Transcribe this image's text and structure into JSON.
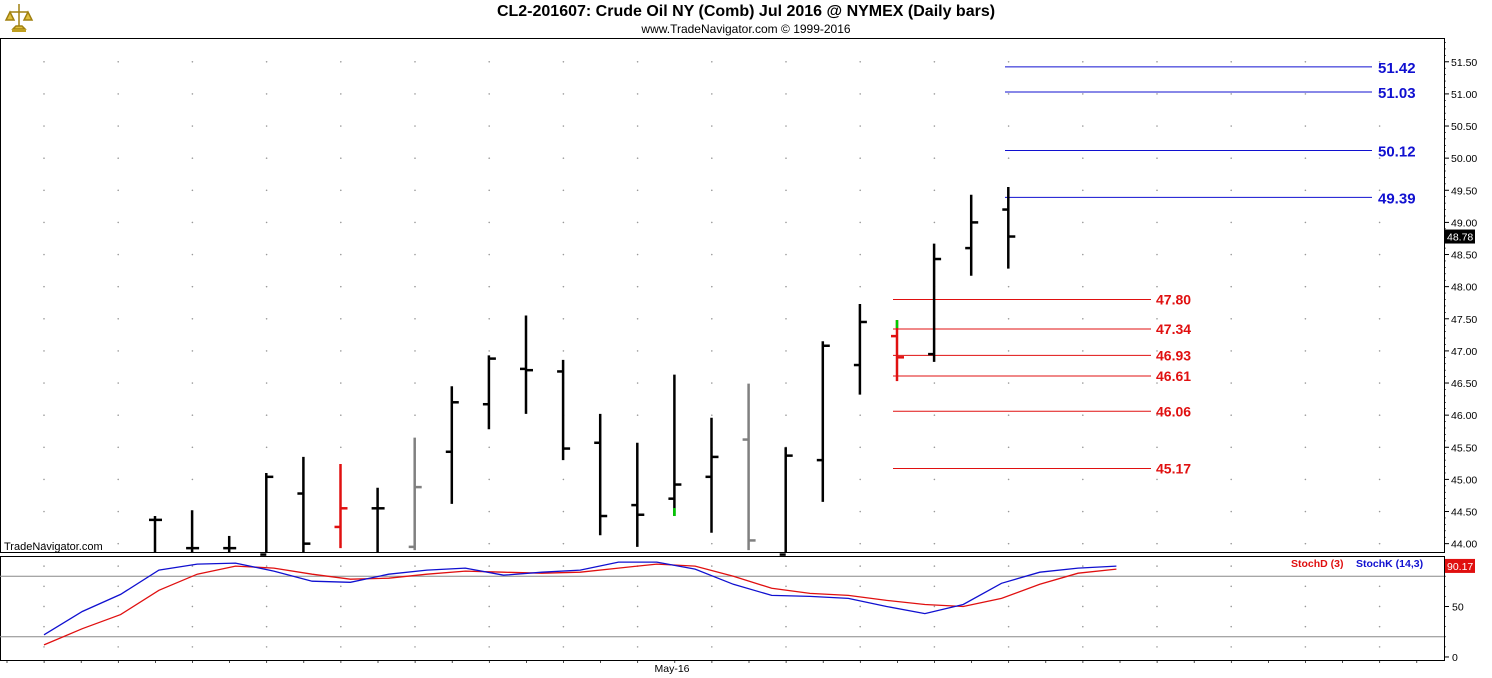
{
  "header": {
    "title": "CL2-201607:  Crude Oil NY (Comb) Jul 2016 @ NYMEX  (Daily bars)",
    "subtitle": "www.TradeNavigator.com © 1999-2016",
    "watermark": "TradeNavigator.com"
  },
  "chart_data": [
    {
      "type": "ohlc",
      "ylim": [
        43.87,
        51.87
      ],
      "yticks": [
        "44.00",
        "44.50",
        "45.00",
        "45.50",
        "46.00",
        "46.50",
        "47.00",
        "47.50",
        "48.00",
        "48.50",
        "49.00",
        "49.50",
        "50.00",
        "50.50",
        "51.00",
        "51.50"
      ],
      "last_price": "48.78",
      "xtick_label": "May-16",
      "grid": true,
      "colors": {
        "normal": "#000000",
        "red": "#e01010",
        "gray": "#808080",
        "green": "#00cc00",
        "blue_level": "#1010d0",
        "red_level": "#e01010"
      },
      "bars": [
        {
          "i": 0,
          "o": 44.37,
          "h": 44.43,
          "l": 43.83,
          "c": 44.37,
          "color": "black"
        },
        {
          "i": 1,
          "o": 43.93,
          "h": 44.52,
          "l": 43.83,
          "c": 43.93,
          "color": "black"
        },
        {
          "i": 2,
          "o": 43.93,
          "h": 44.12,
          "l": 43.83,
          "c": 43.93,
          "color": "black"
        },
        {
          "i": 3,
          "o": 43.83,
          "h": 45.1,
          "l": 43.83,
          "c": 45.04,
          "color": "black"
        },
        {
          "i": 4,
          "o": 44.78,
          "h": 45.35,
          "l": 43.83,
          "c": 44.0,
          "color": "black"
        },
        {
          "i": 5,
          "o": 44.26,
          "h": 45.24,
          "l": 43.93,
          "c": 44.55,
          "color": "red"
        },
        {
          "i": 6,
          "o": 44.55,
          "h": 44.87,
          "l": 43.83,
          "c": 44.55,
          "color": "black"
        },
        {
          "i": 7,
          "o": 43.95,
          "h": 45.65,
          "l": 43.9,
          "c": 44.88,
          "color": "gray"
        },
        {
          "i": 8,
          "o": 45.43,
          "h": 46.45,
          "l": 44.62,
          "c": 46.2,
          "color": "black"
        },
        {
          "i": 9,
          "o": 46.17,
          "h": 46.93,
          "l": 45.78,
          "c": 46.88,
          "color": "black"
        },
        {
          "i": 10,
          "o": 46.72,
          "h": 47.55,
          "l": 46.02,
          "c": 46.7,
          "color": "black"
        },
        {
          "i": 11,
          "o": 46.68,
          "h": 46.86,
          "l": 45.3,
          "c": 45.48,
          "color": "black"
        },
        {
          "i": 12,
          "o": 45.57,
          "h": 46.02,
          "l": 44.13,
          "c": 44.43,
          "color": "black"
        },
        {
          "i": 13,
          "o": 44.6,
          "h": 45.57,
          "l": 43.95,
          "c": 44.45,
          "color": "black"
        },
        {
          "i": 14,
          "o": 44.7,
          "h": 46.63,
          "l": 44.43,
          "c": 44.92,
          "color": "black",
          "low_wick": "green"
        },
        {
          "i": 15,
          "o": 45.04,
          "h": 45.96,
          "l": 44.17,
          "c": 45.35,
          "color": "black"
        },
        {
          "i": 16,
          "o": 45.62,
          "h": 46.49,
          "l": 43.9,
          "c": 44.05,
          "color": "gray"
        },
        {
          "i": 17,
          "o": 43.83,
          "h": 45.5,
          "l": 43.83,
          "c": 45.37,
          "color": "black"
        },
        {
          "i": 18,
          "o": 45.3,
          "h": 47.15,
          "l": 44.65,
          "c": 47.08,
          "color": "black"
        },
        {
          "i": 19,
          "o": 46.78,
          "h": 47.73,
          "l": 46.32,
          "c": 47.45,
          "color": "black"
        },
        {
          "i": 20,
          "o": 47.23,
          "h": 47.48,
          "l": 46.53,
          "c": 46.9,
          "color": "red",
          "high_wick": "green"
        },
        {
          "i": 21,
          "o": 46.95,
          "h": 48.67,
          "l": 46.83,
          "c": 48.43,
          "color": "black"
        },
        {
          "i": 22,
          "o": 48.6,
          "h": 49.43,
          "l": 48.17,
          "c": 49.0,
          "color": "black"
        },
        {
          "i": 23,
          "o": 49.2,
          "h": 49.55,
          "l": 48.28,
          "c": 48.78,
          "color": "black"
        }
      ],
      "levels_blue": [
        {
          "value": 51.42,
          "label": "51.42"
        },
        {
          "value": 51.03,
          "label": "51.03"
        },
        {
          "value": 50.12,
          "label": "50.12"
        },
        {
          "value": 49.39,
          "label": "49.39"
        }
      ],
      "levels_red": [
        {
          "value": 47.8,
          "label": "47.80"
        },
        {
          "value": 47.34,
          "label": "47.34"
        },
        {
          "value": 46.93,
          "label": "46.93"
        },
        {
          "value": 46.61,
          "label": "46.61"
        },
        {
          "value": 46.06,
          "label": "46.06"
        },
        {
          "value": 45.17,
          "label": "45.17"
        }
      ]
    },
    {
      "type": "line",
      "ylim": [
        -3,
        100
      ],
      "yticks": [
        "0",
        "50"
      ],
      "reference_lines": [
        80,
        20
      ],
      "last_value": "90.17",
      "legend": [
        {
          "name": "StochD (3)",
          "color": "#e01010"
        },
        {
          "name": "StochK (14,3)",
          "color": "#1010d0"
        }
      ],
      "series": [
        {
          "name": "StochK (14,3)",
          "color": "#1010d0",
          "x": [
            0,
            1,
            2,
            3,
            4,
            5,
            6,
            7,
            8,
            9,
            10,
            11,
            12,
            13,
            14,
            15,
            16,
            17,
            18,
            19,
            20,
            21,
            22,
            23,
            24,
            25,
            26,
            27,
            28
          ],
          "values": [
            22,
            45,
            62,
            86,
            92,
            93,
            85,
            75,
            74,
            82,
            86,
            88,
            81,
            84,
            86,
            94,
            94,
            87,
            72,
            61,
            60,
            58,
            50,
            43,
            52,
            73,
            84,
            88,
            90
          ]
        },
        {
          "name": "StochD (3)",
          "color": "#e01010",
          "x": [
            0,
            1,
            2,
            3,
            4,
            5,
            6,
            7,
            8,
            9,
            10,
            11,
            12,
            13,
            14,
            15,
            16,
            17,
            18,
            19,
            20,
            21,
            22,
            23,
            24,
            25,
            26,
            27,
            28
          ],
          "values": [
            12,
            28,
            42,
            66,
            82,
            90,
            88,
            82,
            77,
            78,
            82,
            85,
            84,
            83,
            84,
            88,
            92,
            90,
            80,
            68,
            63,
            61,
            56,
            52,
            50,
            58,
            72,
            83,
            87
          ]
        }
      ]
    }
  ]
}
